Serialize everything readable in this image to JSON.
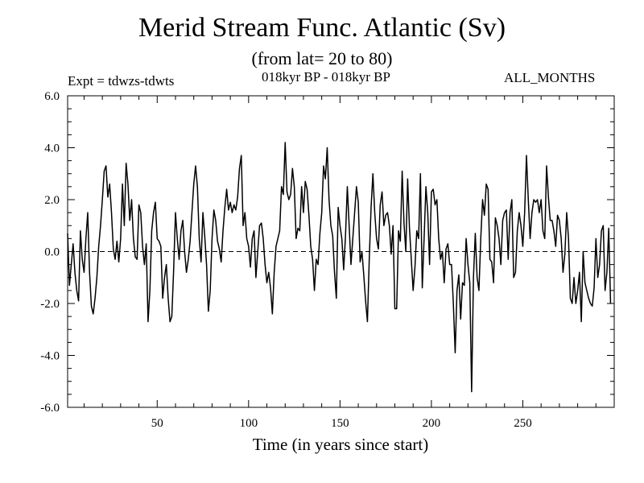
{
  "header": {
    "title": "Merid Stream Func. Atlantic (Sv)",
    "subtitle": "(from lat= 20 to 80)",
    "expt": "Expt = tdwzs-tdwts",
    "period": "018kyr BP - 018kyr BP",
    "months": "ALL_MONTHS"
  },
  "chart_data": {
    "type": "line",
    "title": "Merid Stream Func. Atlantic (Sv)",
    "xlabel": "Time (in years since start)",
    "ylabel": "",
    "xlim": [
      1,
      300
    ],
    "ylim": [
      -6,
      6
    ],
    "x_ticks": [
      50,
      100,
      150,
      200,
      250
    ],
    "y_ticks": [
      -6,
      -4,
      -2,
      0,
      2,
      4,
      6
    ],
    "y_tick_labels": [
      "-6.0",
      "-4.0",
      "-2.0",
      "0.0",
      "2.0",
      "4.0",
      "6.0"
    ],
    "zero_line": "dashed",
    "grid": false,
    "series": [
      {
        "name": "Merid Stream Func.",
        "x_start": 1,
        "x_step": 1,
        "values": [
          0.7,
          -1.3,
          -0.5,
          0.3,
          -0.8,
          -1.5,
          -1.9,
          0.8,
          -0.3,
          -0.8,
          0.5,
          1.5,
          -0.8,
          -2.1,
          -2.4,
          -1.8,
          -1.0,
          0.2,
          1.0,
          2.0,
          3.1,
          3.3,
          2.1,
          2.6,
          1.5,
          0.1,
          -0.3,
          0.4,
          -0.4,
          0.5,
          2.6,
          1.0,
          3.4,
          2.6,
          1.2,
          2.0,
          0.5,
          -0.2,
          -0.3,
          1.8,
          1.5,
          0.2,
          -0.5,
          0.3,
          -2.7,
          -1.5,
          0.8,
          1.5,
          1.9,
          0.5,
          0.4,
          0.2,
          -1.8,
          -1.0,
          -0.5,
          -1.8,
          -2.7,
          -2.5,
          -0.7,
          1.5,
          0.5,
          -0.3,
          0.8,
          1.2,
          0.0,
          -0.8,
          -0.3,
          0.4,
          1.5,
          2.6,
          3.3,
          2.5,
          0.5,
          -0.4,
          1.5,
          0.6,
          -0.5,
          -2.3,
          -1.5,
          0.5,
          1.6,
          1.2,
          0.4,
          0.1,
          -0.4,
          0.8,
          1.7,
          2.4,
          1.6,
          1.9,
          1.5,
          1.8,
          1.6,
          2.1,
          3.2,
          3.7,
          1.0,
          1.5,
          0.5,
          0.2,
          -0.6,
          0.5,
          0.8,
          -1.0,
          0.0,
          1.0,
          1.1,
          0.5,
          -0.5,
          -1.2,
          -0.8,
          -1.4,
          -2.4,
          -0.8,
          0.2,
          0.5,
          0.8,
          2.5,
          2.2,
          4.2,
          2.3,
          2.0,
          2.2,
          3.2,
          2.5,
          0.5,
          0.9,
          0.8,
          2.5,
          1.5,
          2.7,
          2.4,
          1.4,
          0.2,
          -0.3,
          -1.5,
          -0.3,
          -0.5,
          0.7,
          1.5,
          3.3,
          2.8,
          4.0,
          2.0,
          1.0,
          0.6,
          -0.8,
          -1.8,
          1.7,
          1.0,
          0.5,
          -0.7,
          0.6,
          2.5,
          1.0,
          -0.5,
          0.5,
          1.5,
          2.5,
          1.9,
          -0.4,
          0.0,
          -0.9,
          -1.9,
          -2.7,
          -0.3,
          1.7,
          3.0,
          1.5,
          0.5,
          0.1,
          1.8,
          2.3,
          1.0,
          1.4,
          1.5,
          1.0,
          -0.1,
          1.0,
          -2.2,
          -2.2,
          0.8,
          0.4,
          3.1,
          1.1,
          0.0,
          2.8,
          0.9,
          -0.3,
          -1.5,
          -0.6,
          0.8,
          0.5,
          3.0,
          -1.4,
          0.5,
          2.5,
          1.5,
          -0.5,
          2.3,
          2.4,
          1.8,
          2.0,
          0.5,
          -0.3,
          0.0,
          -1.2,
          0.1,
          0.3,
          -0.5,
          -0.5,
          -2.0,
          -3.9,
          -1.5,
          -0.9,
          -2.6,
          -1.2,
          -1.3,
          0.5,
          -0.5,
          -1.2,
          -5.4,
          -1.0,
          0.7,
          -1.0,
          -1.5,
          0.5,
          2.0,
          1.4,
          2.6,
          2.4,
          -0.3,
          -0.4,
          -1.2,
          1.3,
          1.0,
          0.5,
          -0.5,
          1.2,
          1.5,
          1.6,
          -0.3,
          1.5,
          2.0,
          -1.0,
          -0.8,
          0.8,
          1.5,
          1.0,
          0.2,
          1.5,
          3.7,
          2.0,
          0.5,
          1.5,
          2.0,
          1.9,
          2.0,
          1.5,
          2.0,
          0.8,
          0.5,
          3.3,
          2.1,
          1.2,
          1.2,
          0.8,
          0.2,
          1.4,
          1.2,
          0.5,
          -0.8,
          -0.1,
          1.5,
          0.5,
          -1.8,
          -2.0,
          -1.0,
          -2.0,
          -1.5,
          -0.8,
          -2.7,
          0.0,
          -1.2,
          -1.5,
          -1.8,
          -2.0,
          -2.1,
          -1.4,
          0.5,
          -1.0,
          -0.5,
          0.8,
          1.0,
          -1.5,
          -0.8,
          0.9,
          -2.0
        ]
      }
    ]
  }
}
